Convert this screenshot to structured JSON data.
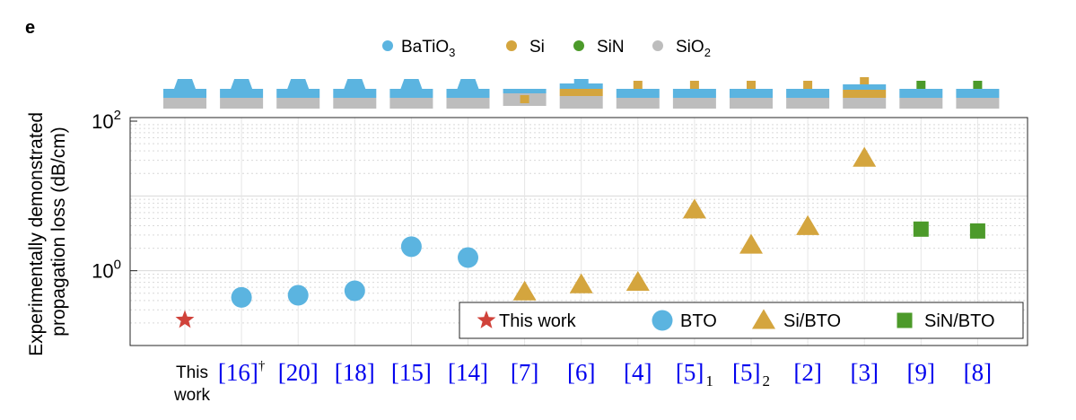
{
  "panel_label": "e",
  "materials_legend": [
    {
      "sub": "3",
      "label": "BaTiO",
      "color": "#5bb4e0"
    },
    {
      "sub": "",
      "label": "Si",
      "color": "#d4a53e"
    },
    {
      "sub": "",
      "label": "SiN",
      "color": "#4c9a2a"
    },
    {
      "sub": "2",
      "label": "SiO",
      "color": "#bdbdbd"
    }
  ],
  "ylabel_lines": [
    "Experimentally demonstrated",
    "propagation loss (dB/cm)"
  ],
  "colors": {
    "bto": "#5bb4e0",
    "si": "#d4a53e",
    "sin": "#4c9a2a",
    "sio2": "#bdbdbd",
    "star": "#d0423a",
    "ref_blue": "#0000ee",
    "grid": "#d9d9d9"
  },
  "chart_data": {
    "type": "scatter",
    "y_scale": "log",
    "ylim": [
      0.1,
      100
    ],
    "y_ticks": [
      {
        "base": "10",
        "exp": "0",
        "value": 1
      },
      {
        "base": "10",
        "exp": "2",
        "value": 100
      }
    ],
    "grid": true,
    "legend_position": "bottom-right",
    "categories": [
      {
        "label": "This work",
        "mark": "This",
        "mark_cont": "work",
        "sup": "",
        "sub": "",
        "group": "star"
      },
      {
        "label": "[16]",
        "mark": "[16]",
        "mark_cont": "",
        "sup": "†",
        "sub": "",
        "group": "bto"
      },
      {
        "label": "[20]",
        "mark": "[20]",
        "mark_cont": "",
        "sup": "",
        "sub": "",
        "group": "bto"
      },
      {
        "label": "[18]",
        "mark": "[18]",
        "mark_cont": "",
        "sup": "",
        "sub": "",
        "group": "bto"
      },
      {
        "label": "[15]",
        "mark": "[15]",
        "mark_cont": "",
        "sup": "",
        "sub": "",
        "group": "bto"
      },
      {
        "label": "[14]",
        "mark": "[14]",
        "mark_cont": "",
        "sup": "",
        "sub": "",
        "group": "bto"
      },
      {
        "label": "[7]",
        "mark": "[7]",
        "mark_cont": "",
        "sup": "",
        "sub": "",
        "group": "sibto"
      },
      {
        "label": "[6]",
        "mark": "[6]",
        "mark_cont": "",
        "sup": "",
        "sub": "",
        "group": "sibto"
      },
      {
        "label": "[4]",
        "mark": "[4]",
        "mark_cont": "",
        "sup": "",
        "sub": "",
        "group": "sibto"
      },
      {
        "label": "[5]1",
        "mark": "[5]",
        "mark_cont": "",
        "sup": "",
        "sub": "1",
        "group": "sibto"
      },
      {
        "label": "[5]2",
        "mark": "[5]",
        "mark_cont": "",
        "sup": "",
        "sub": "2",
        "group": "sibto"
      },
      {
        "label": "[2]",
        "mark": "[2]",
        "mark_cont": "",
        "sup": "",
        "sub": "",
        "group": "sibto"
      },
      {
        "label": "[3]",
        "mark": "[3]",
        "mark_cont": "",
        "sup": "",
        "sub": "",
        "group": "sibto"
      },
      {
        "label": "[9]",
        "mark": "[9]",
        "mark_cont": "",
        "sup": "",
        "sub": "",
        "group": "sinbto"
      },
      {
        "label": "[8]",
        "mark": "[8]",
        "mark_cont": "",
        "sup": "",
        "sub": "",
        "group": "sinbto"
      }
    ],
    "series": [
      {
        "name": "This work",
        "marker": "star",
        "color": "#d0423a",
        "points": [
          {
            "x": "This work",
            "y": 0.22
          }
        ]
      },
      {
        "name": "BTO",
        "marker": "circle",
        "color": "#5bb4e0",
        "points": [
          {
            "x": "[16]",
            "y": 0.44
          },
          {
            "x": "[20]",
            "y": 0.47
          },
          {
            "x": "[18]",
            "y": 0.54
          },
          {
            "x": "[15]",
            "y": 2.1
          },
          {
            "x": "[14]",
            "y": 1.5
          }
        ]
      },
      {
        "name": "Si/BTO",
        "marker": "triangle",
        "color": "#d4a53e",
        "points": [
          {
            "x": "[7]",
            "y": 0.52
          },
          {
            "x": "[6]",
            "y": 0.65
          },
          {
            "x": "[4]",
            "y": 0.7
          },
          {
            "x": "[5]1",
            "y": 6.5
          },
          {
            "x": "[5]2",
            "y": 2.2
          },
          {
            "x": "[2]",
            "y": 3.9
          },
          {
            "x": "[3]",
            "y": 32
          }
        ]
      },
      {
        "name": "SiN/BTO",
        "marker": "square",
        "color": "#4c9a2a",
        "points": [
          {
            "x": "[9]",
            "y": 3.6
          },
          {
            "x": "[8]",
            "y": 3.4
          }
        ]
      }
    ],
    "cross_sections": [
      "rib",
      "rib",
      "rib",
      "rib",
      "rib",
      "rib",
      "si_embedded",
      "si_slab",
      "si_strip",
      "si_strip",
      "si_strip",
      "si_strip",
      "si_slab_strip",
      "sin_strip",
      "sin_strip"
    ]
  }
}
